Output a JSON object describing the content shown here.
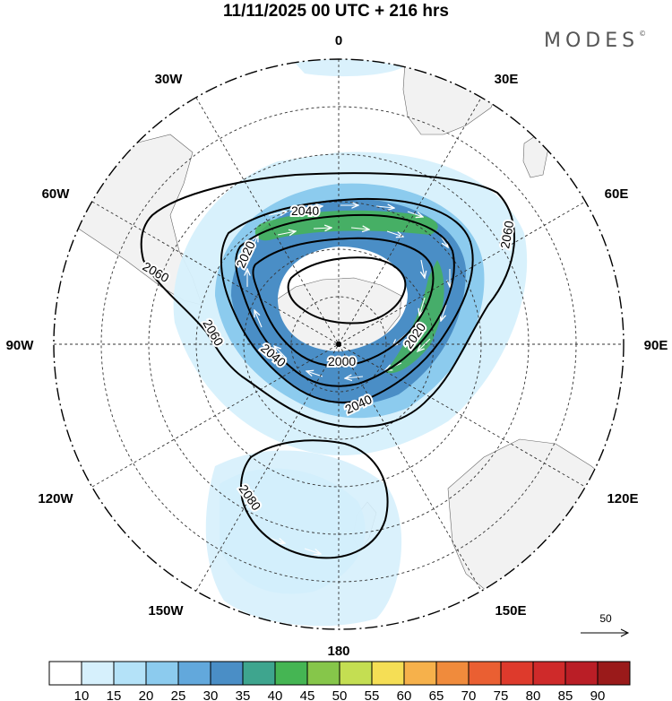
{
  "title": "11/11/2025  00 UTC  + 216 hrs",
  "logo": "MODES",
  "logo_mark": "©",
  "longitude_labels": {
    "l0": "0",
    "l30e": "30E",
    "l60e": "60E",
    "l90e": "90E",
    "l120e": "120E",
    "l150e": "150E",
    "l180": "180",
    "l150w": "150W",
    "l120w": "120W",
    "l90w": "90W",
    "l60w": "60W",
    "l30w": "30W"
  },
  "contour_labels": [
    "2020",
    "2040",
    "2060",
    "2080",
    "2000"
  ],
  "vector_reference": "50",
  "colorbar": {
    "ticks": [
      "10",
      "15",
      "20",
      "25",
      "30",
      "35",
      "40",
      "45",
      "50",
      "55",
      "60",
      "65",
      "70",
      "75",
      "80",
      "85",
      "90"
    ],
    "colors": [
      "#ffffff",
      "#d6f0fc",
      "#b4e2f8",
      "#8ccbee",
      "#62a8dc",
      "#4a8ec6",
      "#3ea58e",
      "#45b553",
      "#86c64a",
      "#c4de52",
      "#f5de55",
      "#f6b14b",
      "#f08b3c",
      "#ea5f32",
      "#de3a2c",
      "#cf2a2a",
      "#ba1e26",
      "#9a1a1a"
    ]
  }
}
